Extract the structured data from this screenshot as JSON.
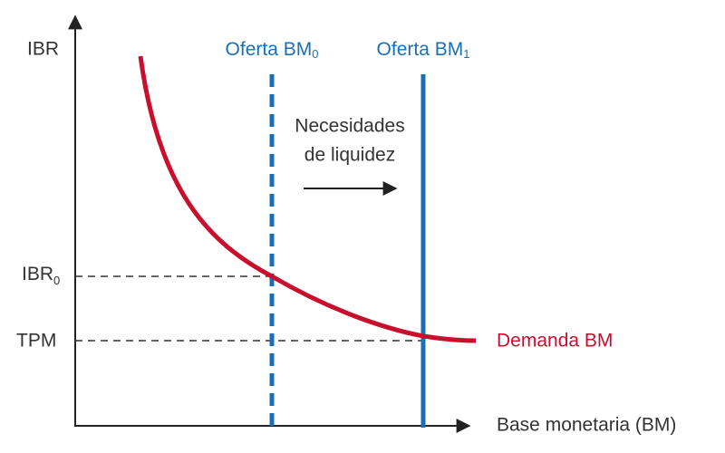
{
  "y_axis": {
    "label": "IBR"
  },
  "x_axis": {
    "label": "Base monetaria (BM)"
  },
  "supply_0": {
    "label": "Oferta BM",
    "subscript": "0"
  },
  "supply_1": {
    "label": "Oferta BM",
    "subscript": "1"
  },
  "shift_note": {
    "lines": [
      "Necesidades",
      "de liquidez"
    ]
  },
  "demand": {
    "label": "Demanda BM"
  },
  "levels": [
    {
      "label": "IBR",
      "subscript": "0"
    },
    {
      "label": "TPM"
    }
  ]
}
